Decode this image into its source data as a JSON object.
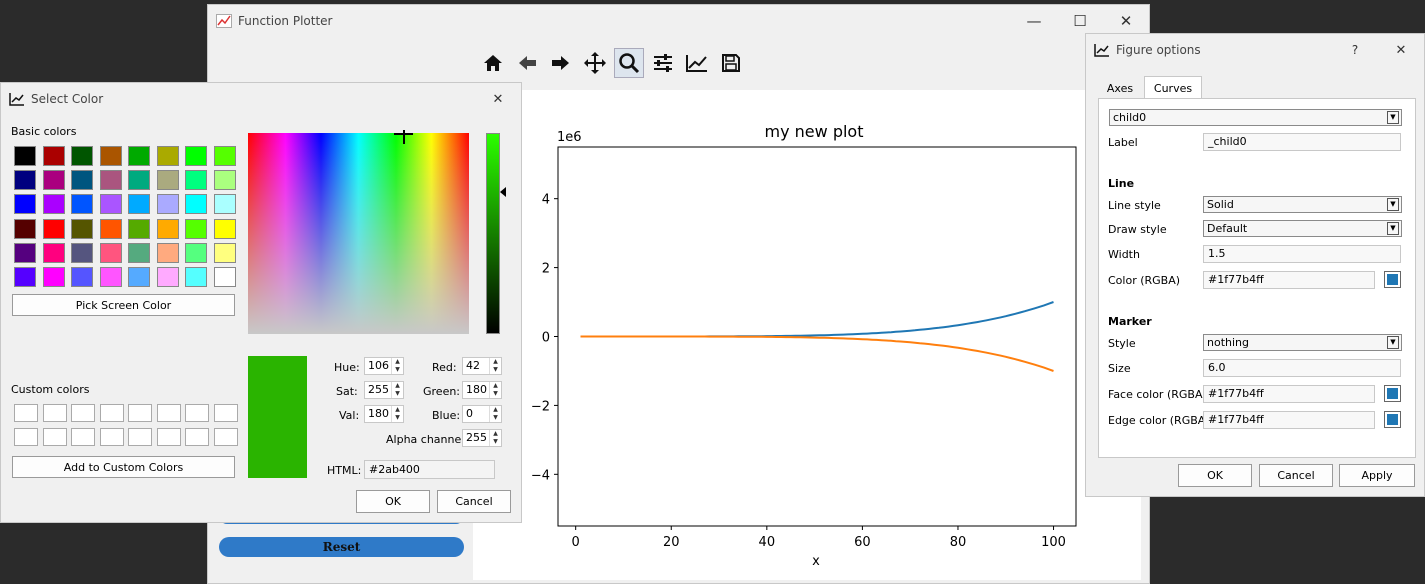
{
  "main_window": {
    "title": "Function Plotter",
    "toolbar": [
      "home-icon",
      "back-arrow-icon",
      "forward-arrow-icon",
      "pan-icon",
      "zoom-icon",
      "configure-subplots-icon",
      "edit-curves-icon",
      "save-icon"
    ],
    "reset_label": "Reset"
  },
  "chart_data": {
    "type": "line",
    "title": "my new plot",
    "xlabel": "x",
    "ylabel": "",
    "offset_label": "1e6",
    "xlim": [
      1,
      100
    ],
    "ylim": [
      -5.5,
      5.5
    ],
    "xticks": [
      "0",
      "20",
      "40",
      "60",
      "80",
      "100"
    ],
    "yticks": [
      "−4",
      "−2",
      "0",
      "2",
      "4"
    ],
    "series": [
      {
        "color": "#1f77b4",
        "fn": "x^5/1e10"
      },
      {
        "color": "#ff7f0e",
        "fn": "-x^5/1e10"
      }
    ]
  },
  "color_dialog": {
    "title": "Select Color",
    "basic_colors_label": "Basic colors",
    "basic_colors": [
      "#000000",
      "#aa0000",
      "#005500",
      "#aa5500",
      "#00aa00",
      "#aaaa00",
      "#00ff00",
      "#55ff00",
      "#00007f",
      "#aa007f",
      "#00557f",
      "#aa557f",
      "#00aa7f",
      "#aaaa7f",
      "#00ff7f",
      "#aaff7f",
      "#0000ff",
      "#aa00ff",
      "#0055ff",
      "#aa55ff",
      "#00aaff",
      "#aaaaff",
      "#00ffff",
      "#aaffff",
      "#550000",
      "#ff0000",
      "#555500",
      "#ff5500",
      "#55aa00",
      "#ffaa00",
      "#55ff00",
      "#ffff00",
      "#55007f",
      "#ff007f",
      "#55557f",
      "#ff557f",
      "#55aa7f",
      "#ffaa7f",
      "#55ff7f",
      "#ffff7f",
      "#5500ff",
      "#ff00ff",
      "#5555ff",
      "#ff55ff",
      "#55aaff",
      "#ffaaff",
      "#55ffff",
      "#ffffff"
    ],
    "pick_screen_label": "Pick Screen Color",
    "custom_colors_label": "Custom colors",
    "add_custom_label": "Add to Custom Colors",
    "preview_color": "#2ab400",
    "hue_label": "Hue:",
    "hue": "106",
    "sat_label": "Sat:",
    "sat": "255",
    "val_label": "Val:",
    "val": "180",
    "red_label": "Red:",
    "red": "42",
    "green_label": "Green:",
    "green": "180",
    "blue_label": "Blue:",
    "blue": "0",
    "alpha_label": "Alpha channel:",
    "alpha": "255",
    "html_label": "HTML:",
    "html": "#2ab400",
    "ok": "OK",
    "cancel": "Cancel"
  },
  "figure_options": {
    "title": "Figure options",
    "help": "?",
    "tabs": [
      "Axes",
      "Curves"
    ],
    "curve_select": "child0",
    "label_label": "Label",
    "label_value": "_child0",
    "line_section": "Line",
    "line_style_label": "Line style",
    "line_style": "Solid",
    "draw_style_label": "Draw style",
    "draw_style": "Default",
    "width_label": "Width",
    "width": "1.5",
    "color_label": "Color (RGBA)",
    "color": "#1f77b4ff",
    "marker_section": "Marker",
    "style_label": "Style",
    "style": "nothing",
    "size_label": "Size",
    "size": "6.0",
    "face_label": "Face color (RGBA)",
    "face": "#1f77b4ff",
    "edge_label": "Edge color (RGBA)",
    "edge": "#1f77b4ff",
    "ok": "OK",
    "cancel": "Cancel",
    "apply": "Apply"
  }
}
